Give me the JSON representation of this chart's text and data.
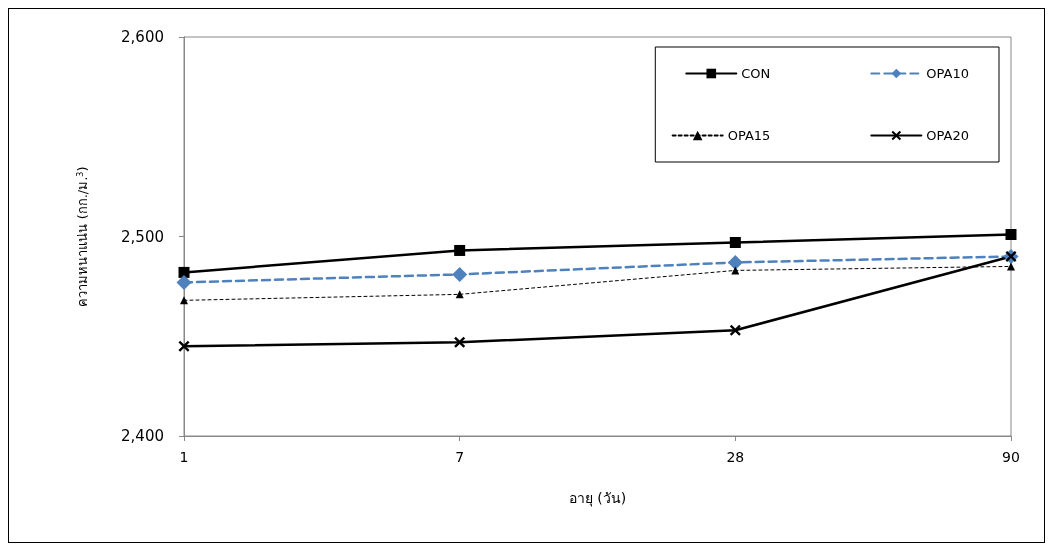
{
  "chart_data": {
    "type": "line",
    "xlabel": "อายุ (วัน)",
    "ylabel": "ความหนาแน่น (กก./ม.$^{3}$)",
    "categories": [
      "1",
      "7",
      "28",
      "90"
    ],
    "ylim": [
      2400,
      2600
    ],
    "yticks": [
      {
        "value": 2400,
        "label": "2,400"
      },
      {
        "value": 2500,
        "label": "2,500"
      },
      {
        "value": 2600,
        "label": "2,600"
      }
    ],
    "grid": false,
    "legend": "top right",
    "series": [
      {
        "name": "CON",
        "color": "#000000",
        "marker": "square",
        "line_style": "solid",
        "values": [
          2482,
          2493,
          2497,
          2501
        ]
      },
      {
        "name": "OPA10",
        "color": "#4f81bd",
        "marker": "diamond",
        "line_style": "dashed",
        "values": [
          2477,
          2481,
          2487,
          2490
        ]
      },
      {
        "name": "OPA15",
        "color": "#000000",
        "marker": "triangle",
        "line_style": "dotted",
        "values": [
          2468,
          2471,
          2483,
          2485
        ]
      },
      {
        "name": "OPA20",
        "color": "#000000",
        "marker": "cross",
        "line_style": "solid",
        "values": [
          2445,
          2447,
          2453,
          2490
        ]
      }
    ]
  }
}
